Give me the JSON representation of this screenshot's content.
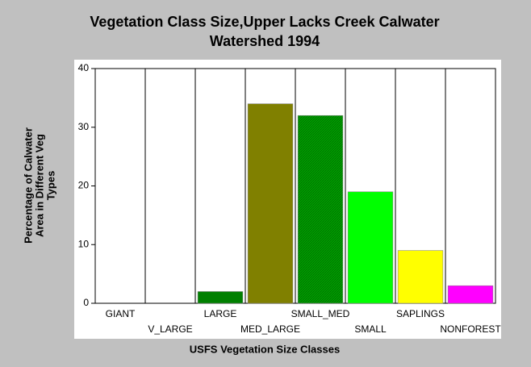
{
  "chart_data": {
    "type": "bar",
    "title": [
      "Vegetation Class Size,Upper Lacks Creek Calwater",
      "Watershed 1994"
    ],
    "ylabel": [
      "Percentage of Calwater",
      "Area in Different Veg",
      "Types"
    ],
    "xlabel": "USFS Vegetation Size Classes",
    "categories": [
      "GIANT",
      "V_LARGE",
      "LARGE",
      "MED_LARGE",
      "SMALL_MED",
      "SMALL",
      "SAPLINGS",
      "NONFOREST"
    ],
    "values": [
      0,
      0,
      2,
      34,
      32,
      19,
      9,
      3
    ],
    "colors": [
      "#008000",
      "#008000",
      "#008000",
      "#808000",
      "#00a000",
      "#00ff00",
      "#ffff00",
      "#ff00ff"
    ],
    "ylim": [
      0,
      40
    ],
    "yticks": [
      0,
      10,
      20,
      30,
      40
    ],
    "grid": "x"
  }
}
